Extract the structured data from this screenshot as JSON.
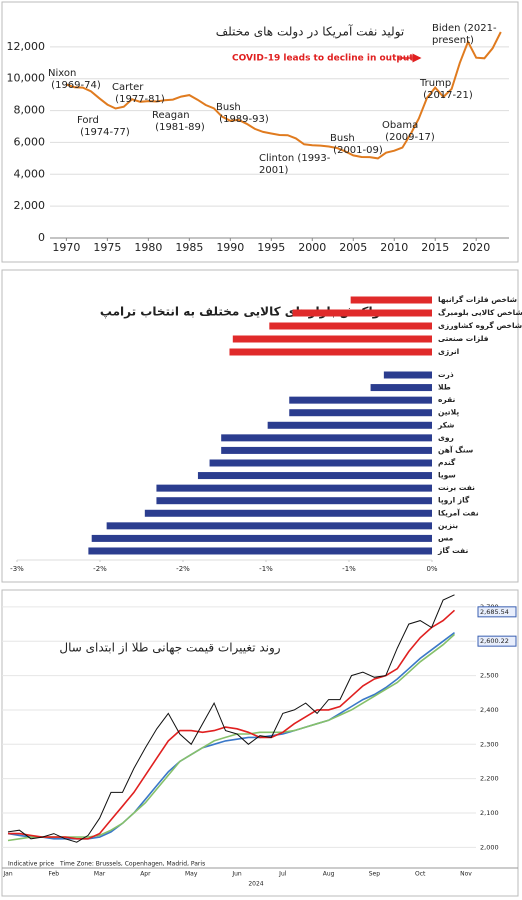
{
  "chart_data": [
    {
      "type": "line",
      "title": "تولید نفت آمریکا در دولت های مختلف",
      "x": [
        1970,
        1971,
        1972,
        1973,
        1974,
        1975,
        1976,
        1977,
        1978,
        1979,
        1980,
        1981,
        1982,
        1983,
        1984,
        1985,
        1986,
        1987,
        1988,
        1989,
        1990,
        1991,
        1992,
        1993,
        1994,
        1995,
        1996,
        1997,
        1998,
        1999,
        2000,
        2001,
        2002,
        2003,
        2004,
        2005,
        2006,
        2007,
        2008,
        2009,
        2010,
        2011,
        2012,
        2013,
        2014,
        2015,
        2016,
        2017,
        2018,
        2019,
        2020,
        2021,
        2022,
        2023
      ],
      "series": [
        {
          "color": "#e07b1f",
          "values": [
            9637,
            9463,
            9441,
            9208,
            8774,
            8375,
            8132,
            8245,
            8707,
            8552,
            8597,
            8572,
            8649,
            8688,
            8879,
            8971,
            8680,
            8349,
            8140,
            7613,
            7355,
            7417,
            7171,
            6847,
            6662,
            6560,
            6465,
            6452,
            6252,
            5881,
            5822,
            5801,
            5744,
            5649,
            5441,
            5184,
            5086,
            5077,
            5000,
            5353,
            5482,
            5674,
            6523,
            7494,
            8793,
            9442,
            8856,
            9352,
            10991,
            12315,
            11318,
            11283,
            11911,
            12930
          ]
        }
      ],
      "xlim": [
        1968,
        2024
      ],
      "xticks": [
        1970,
        1975,
        1980,
        1985,
        1990,
        1995,
        2000,
        2005,
        2010,
        2015,
        2020
      ],
      "ylim": [
        0,
        14000
      ],
      "yticks": [
        0,
        {
          "value": 2000,
          "label": "2,000"
        },
        {
          "value": 4000,
          "label": "4,000"
        },
        {
          "value": 6000,
          "label": "6,000"
        },
        {
          "value": 8000,
          "label": "8,000"
        },
        {
          "value": 10000,
          "label": "10,000"
        },
        {
          "value": 12000,
          "label": "12,000"
        }
      ],
      "grid": true,
      "annotations": [
        "Nixon (1969-74)",
        "Ford (1974-77)",
        "Carter (1977-81)",
        "Reagan (1981-89)",
        "Bush (1989-93)",
        "Clinton (1993-2001)",
        "Bush (2001-09)",
        "Obama (2009-17)",
        "Trump (2017-21)",
        "Biden (2021-present)"
      ],
      "callout": "COVID-19 leads to decline in output"
    },
    {
      "type": "hbar",
      "title": "واکنش بازارهای کالایی مختلف به انتخاب ترامپ",
      "categories": [
        "شاخص فلزات گرانبها",
        "شاخص کالایی بلومبرگ",
        "شاخص گروه کشاورزی",
        "فلزات صنعتی",
        "انرژی",
        "ذرت",
        "طلا",
        "نقره",
        "پلاتین",
        "شکر",
        "روی",
        "سنگ آهن",
        "گندم",
        "سویا",
        "نفت برنت",
        "گاز اروپا",
        "نفت آمریکا",
        "بنزین",
        "مس",
        "نفت گاز"
      ],
      "values": [
        -0.49,
        -0.84,
        -0.98,
        -1.2,
        -1.22,
        -0.29,
        -0.37,
        -0.86,
        -0.86,
        -0.99,
        -1.27,
        -1.27,
        -1.34,
        -1.41,
        -1.66,
        -1.66,
        -1.73,
        -1.96,
        -2.05,
        -2.07
      ],
      "colors": [
        "#e02a2a",
        "#e02a2a",
        "#e02a2a",
        "#e02a2a",
        "#e02a2a",
        "#2b3d8f",
        "#2b3d8f",
        "#2b3d8f",
        "#2b3d8f",
        "#2b3d8f",
        "#2b3d8f",
        "#2b3d8f",
        "#2b3d8f",
        "#2b3d8f",
        "#2b3d8f",
        "#2b3d8f",
        "#2b3d8f",
        "#2b3d8f",
        "#2b3d8f",
        "#2b3d8f"
      ],
      "xlim": [
        -2.5,
        0
      ],
      "xticks": [
        {
          "value": -2.5,
          "label": "-3%"
        },
        {
          "value": -2,
          "label": "-2%"
        },
        {
          "value": -1.5,
          "label": "-2%"
        },
        {
          "value": -1,
          "label": "-1%"
        },
        {
          "value": -0.5,
          "label": "-1%"
        },
        {
          "value": 0,
          "label": "0%"
        }
      ],
      "grid": false
    },
    {
      "type": "line",
      "title": "روند تغییرات قیمت جهانی طلا از ابتدای سال",
      "categories": [
        "Jan",
        null,
        null,
        null,
        "Feb",
        null,
        null,
        null,
        "Mar",
        null,
        null,
        null,
        "Apr",
        null,
        null,
        null,
        "May",
        null,
        null,
        null,
        "Jun",
        null,
        null,
        null,
        "Jul",
        null,
        null,
        null,
        "Aug",
        null,
        null,
        null,
        "Sep",
        null,
        null,
        null,
        "Oct",
        null,
        null,
        null,
        "Nov"
      ],
      "series": [
        {
          "color": "#111111",
          "values": [
            2045,
            2050,
            2025,
            2030,
            2040,
            2025,
            2015,
            2035,
            2085,
            2160,
            2160,
            2230,
            2290,
            2345,
            2390,
            2330,
            2300,
            2360,
            2420,
            2340,
            2330,
            2300,
            2325,
            2320,
            2390,
            2400,
            2420,
            2390,
            2430,
            2430,
            2500,
            2510,
            2495,
            2500,
            2580,
            2650,
            2660,
            2640,
            2720,
            2735,
            null
          ]
        },
        {
          "color": "#e02020",
          "values": [
            2040,
            2040,
            2035,
            2030,
            2030,
            2030,
            2025,
            2025,
            2040,
            2080,
            2120,
            2160,
            2210,
            2260,
            2310,
            2340,
            2340,
            2335,
            2340,
            2350,
            2345,
            2335,
            2320,
            2320,
            2335,
            2360,
            2380,
            2400,
            2400,
            2410,
            2440,
            2470,
            2490,
            2500,
            2520,
            2570,
            2610,
            2640,
            2660,
            2690,
            null
          ]
        },
        {
          "color": "#86c06a",
          "values": [
            2020,
            2025,
            2030,
            2030,
            2030,
            2030,
            2030,
            2030,
            2035,
            2050,
            2070,
            2100,
            2130,
            2170,
            2210,
            2250,
            2270,
            2290,
            2310,
            2320,
            2330,
            2330,
            2335,
            2335,
            2335,
            2340,
            2350,
            2360,
            2370,
            2385,
            2400,
            2420,
            2440,
            2460,
            2480,
            2510,
            2540,
            2565,
            2590,
            2620,
            null
          ]
        },
        {
          "color": "#3a78c8",
          "values": [
            2040,
            2035,
            2030,
            2030,
            2025,
            2025,
            2025,
            2025,
            2030,
            2045,
            2070,
            2100,
            2140,
            2180,
            2220,
            2250,
            2270,
            2290,
            2300,
            2310,
            2315,
            2320,
            2320,
            2325,
            2330,
            2340,
            2350,
            2360,
            2370,
            2390,
            2410,
            2430,
            2445,
            2465,
            2490,
            2520,
            2550,
            2575,
            2600,
            2625,
            null
          ]
        }
      ],
      "ylim": [
        1940,
        2720
      ],
      "yticks": [
        {
          "value": 2000,
          "label": "2,000"
        },
        {
          "value": 2100,
          "label": "2,100"
        },
        {
          "value": 2200,
          "label": "2,200"
        },
        {
          "value": 2300,
          "label": "2,300"
        },
        {
          "value": 2400,
          "label": "2,400"
        },
        {
          "value": 2500,
          "label": "2,500"
        },
        {
          "value": 2600,
          "label": "2,600"
        },
        {
          "value": 2700,
          "label": "2,700"
        }
      ],
      "grid": true,
      "price_labels": [
        {
          "value": 2685.54,
          "label": "2,685.54"
        },
        {
          "value": 2600.22,
          "label": "2,600.22"
        }
      ],
      "notes": [
        "Indicative price",
        "Time Zone: Brussels, Copenhagen, Madrid, Paris"
      ],
      "year": "2024"
    }
  ]
}
